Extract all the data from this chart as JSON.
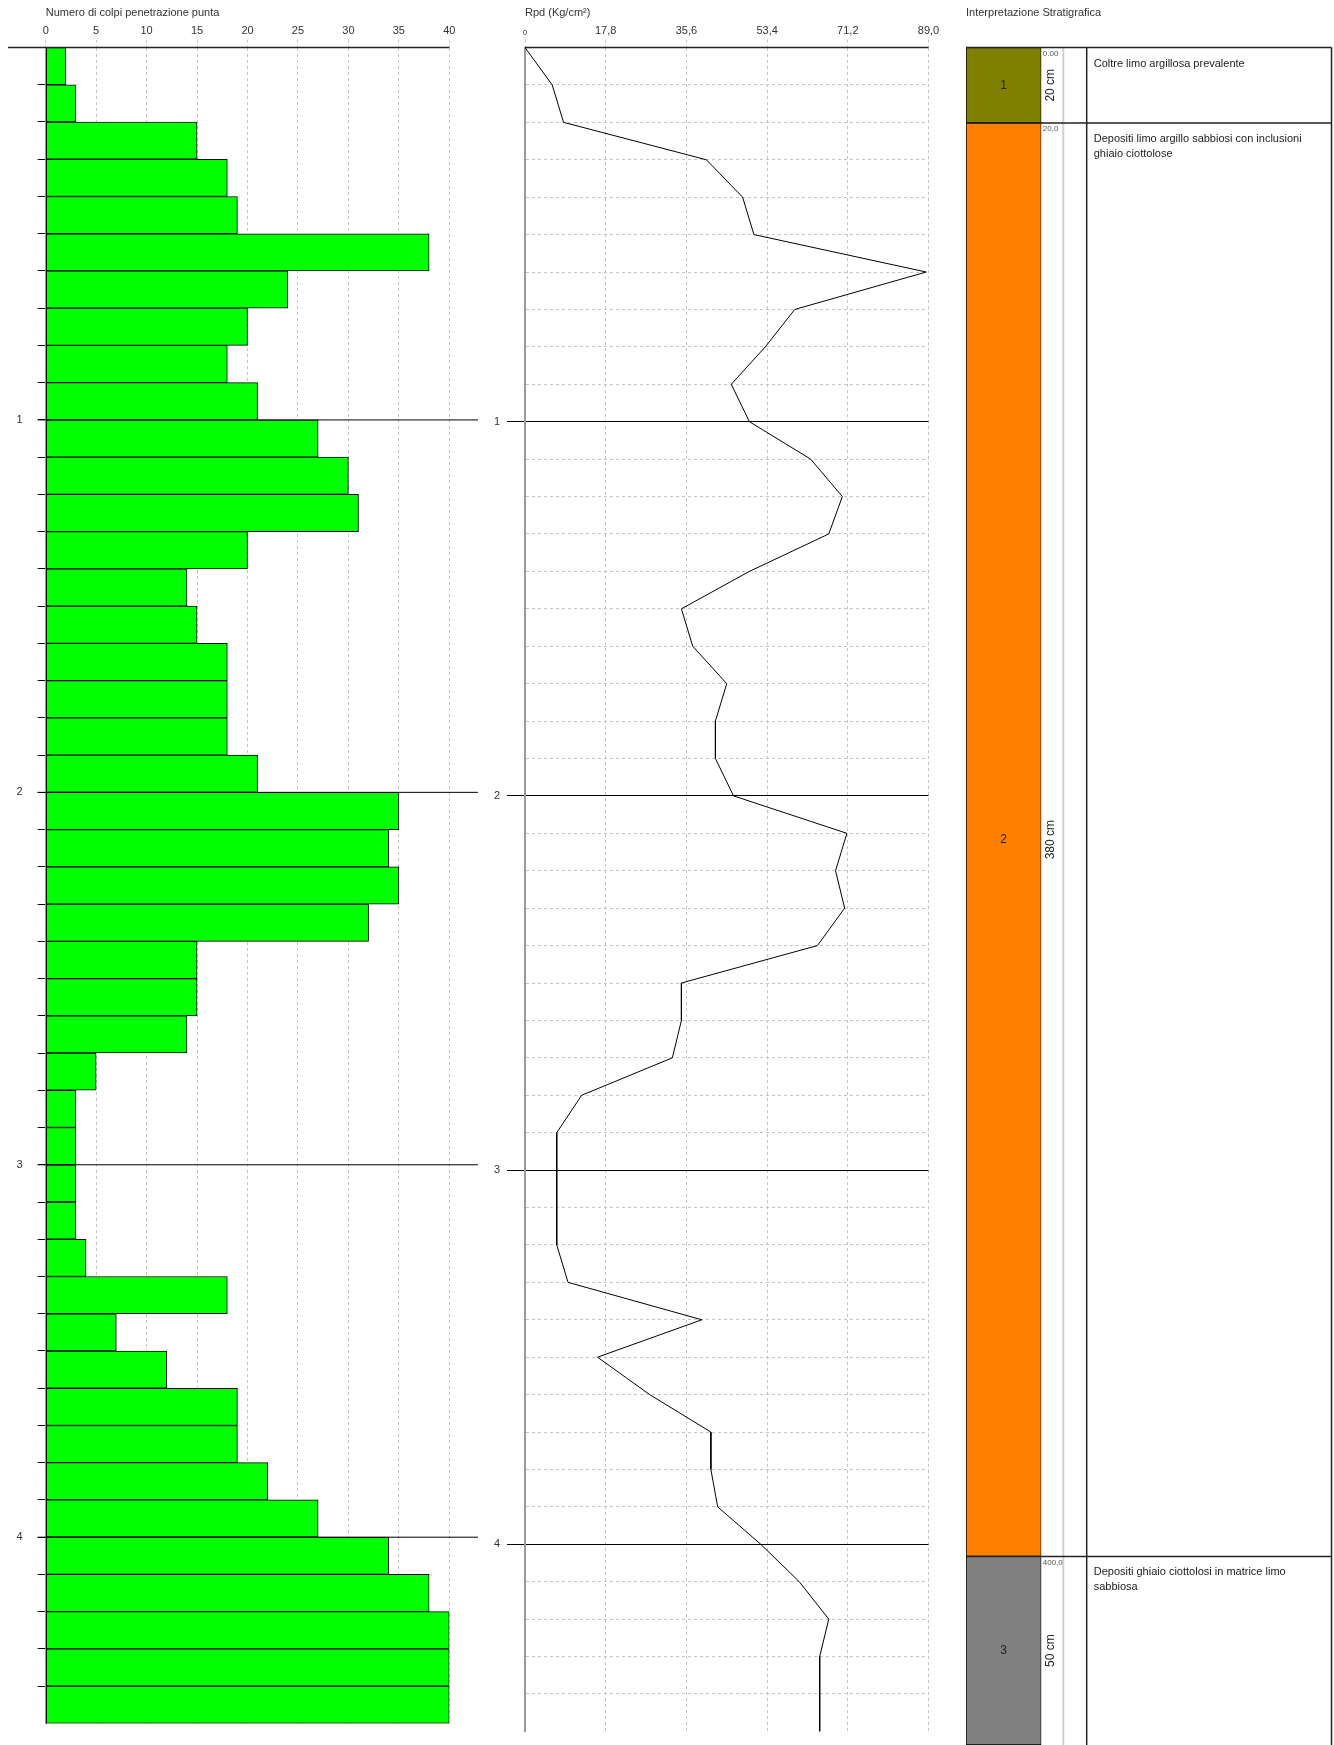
{
  "chart_data": [
    {
      "type": "histogram",
      "orientation": "horizontal",
      "title": "Numero di colpi penetrazione punta",
      "bins": [
        0,
        0.1,
        0.2,
        0.3,
        0.4,
        0.5,
        0.6,
        0.7,
        0.8,
        0.9,
        1,
        1.1,
        1.2,
        1.3,
        1.4,
        1.5,
        1.6,
        1.7,
        1.8,
        1.9,
        2,
        2.1,
        2.2,
        2.3,
        2.4,
        2.5,
        2.6,
        2.7,
        2.8,
        2.9,
        3,
        3.1,
        3.2,
        3.3,
        3.4,
        3.5,
        3.6,
        3.7,
        3.8,
        3.9,
        4,
        4.1,
        4.2,
        4.3,
        4.4,
        4.5
      ],
      "values": [
        2,
        3,
        15,
        18,
        19,
        38,
        24,
        20,
        18,
        21,
        27,
        30,
        31,
        20,
        14,
        15,
        18,
        18,
        18,
        21,
        35,
        34,
        35,
        32,
        15,
        15,
        14,
        5,
        3,
        3,
        3,
        3,
        4,
        18,
        7,
        12,
        19,
        19,
        22,
        27,
        34,
        38,
        40,
        40,
        40
      ],
      "color": "#00ff00",
      "xlim": [
        0,
        40
      ],
      "xticks": [
        0,
        5,
        10,
        15,
        20,
        25,
        30,
        35,
        40
      ],
      "ylim": [
        4.5,
        0
      ],
      "yticks": [
        {
          "value": 0.1,
          "label": null
        },
        {
          "value": 0.2,
          "label": null
        },
        {
          "value": 0.3,
          "label": null
        },
        {
          "value": 0.4,
          "label": null
        },
        {
          "value": 0.5,
          "label": null
        },
        {
          "value": 0.6,
          "label": null
        },
        {
          "value": 0.7,
          "label": null
        },
        {
          "value": 0.8,
          "label": null
        },
        {
          "value": 0.9,
          "label": null
        },
        1,
        {
          "value": 1.1,
          "label": null
        },
        {
          "value": 1.2,
          "label": null
        },
        {
          "value": 1.3,
          "label": null
        },
        {
          "value": 1.4,
          "label": null
        },
        {
          "value": 1.5,
          "label": null
        },
        {
          "value": 1.6,
          "label": null
        },
        {
          "value": 1.7,
          "label": null
        },
        {
          "value": 1.8,
          "label": null
        },
        {
          "value": 1.9,
          "label": null
        },
        2,
        {
          "value": 2.1,
          "label": null
        },
        {
          "value": 2.2,
          "label": null
        },
        {
          "value": 2.3,
          "label": null
        },
        {
          "value": 2.4,
          "label": null
        },
        {
          "value": 2.5,
          "label": null
        },
        {
          "value": 2.6,
          "label": null
        },
        {
          "value": 2.7,
          "label": null
        },
        {
          "value": 2.8,
          "label": null
        },
        {
          "value": 2.9,
          "label": null
        },
        3,
        {
          "value": 3.1,
          "label": null
        },
        {
          "value": 3.2,
          "label": null
        },
        {
          "value": 3.3,
          "label": null
        },
        {
          "value": 3.4,
          "label": null
        },
        {
          "value": 3.5,
          "label": null
        },
        {
          "value": 3.6,
          "label": null
        },
        {
          "value": 3.7,
          "label": null
        },
        {
          "value": 3.8,
          "label": null
        },
        {
          "value": 3.9,
          "label": null
        },
        4,
        {
          "value": 4.1,
          "label": null
        },
        {
          "value": 4.2,
          "label": null
        },
        {
          "value": 4.3,
          "label": null
        },
        {
          "value": 4.4,
          "label": null
        }
      ],
      "grid": "x",
      "ref_lines": [
        {
          "axis": "y",
          "value": 1
        },
        {
          "axis": "y",
          "value": 2
        },
        {
          "axis": "y",
          "value": 3
        },
        {
          "axis": "y",
          "value": 4
        }
      ]
    },
    {
      "type": "line",
      "title": "Rpd (Kg/cm²)",
      "x": [
        0,
        6,
        8.5,
        40,
        48,
        50.5,
        88.5,
        59.5,
        53,
        45.5,
        49.5,
        63,
        70,
        67,
        49.5,
        34.5,
        37,
        44.5,
        42,
        42,
        46,
        71,
        68.5,
        70.5,
        64.5,
        34.5,
        34.5,
        32.5,
        12.5,
        7,
        7,
        9.5,
        39,
        16,
        27.5,
        41,
        41,
        42.5,
        52,
        60.5,
        67,
        65,
        65
      ],
      "values": [
        0,
        0.1,
        0.2,
        0.3,
        0.4,
        0.5,
        0.6,
        0.7,
        0.8,
        0.9,
        1,
        1.1,
        1.2,
        1.3,
        1.4,
        1.5,
        1.6,
        1.7,
        1.8,
        1.9,
        2,
        2.1,
        2.2,
        2.3,
        2.4,
        2.5,
        2.6,
        2.7,
        2.8,
        2.9,
        3.2,
        3.3,
        3.4,
        3.5,
        3.6,
        3.7,
        3.8,
        3.9,
        4,
        4.1,
        4.2,
        4.3,
        4.5
      ],
      "color": "#000000",
      "xlim": [
        0,
        89
      ],
      "xticks": [
        0,
        {
          "value": 17.8,
          "label": "17,8"
        },
        {
          "value": 35.6,
          "label": "35,6"
        },
        {
          "value": 53.4,
          "label": "53,4"
        },
        {
          "value": 71.2,
          "label": "71,2"
        },
        {
          "value": 89,
          "label": "89,0"
        }
      ],
      "ylim": [
        4.5,
        0
      ],
      "yticks": [
        {
          "value": 0.1,
          "label": null
        },
        {
          "value": 0.2,
          "label": null
        },
        {
          "value": 0.3,
          "label": null
        },
        {
          "value": 0.4,
          "label": null
        },
        {
          "value": 0.5,
          "label": null
        },
        {
          "value": 0.6,
          "label": null
        },
        {
          "value": 0.7,
          "label": null
        },
        {
          "value": 0.8,
          "label": null
        },
        {
          "value": 0.9,
          "label": null
        },
        1,
        {
          "value": 1.1,
          "label": null
        },
        {
          "value": 1.2,
          "label": null
        },
        {
          "value": 1.3,
          "label": null
        },
        {
          "value": 1.4,
          "label": null
        },
        {
          "value": 1.5,
          "label": null
        },
        {
          "value": 1.6,
          "label": null
        },
        {
          "value": 1.7,
          "label": null
        },
        {
          "value": 1.8,
          "label": null
        },
        {
          "value": 1.9,
          "label": null
        },
        2,
        {
          "value": 2.1,
          "label": null
        },
        {
          "value": 2.2,
          "label": null
        },
        {
          "value": 2.3,
          "label": null
        },
        {
          "value": 2.4,
          "label": null
        },
        {
          "value": 2.5,
          "label": null
        },
        {
          "value": 2.6,
          "label": null
        },
        {
          "value": 2.7,
          "label": null
        },
        {
          "value": 2.8,
          "label": null
        },
        {
          "value": 2.9,
          "label": null
        },
        3,
        {
          "value": 3.1,
          "label": null
        },
        {
          "value": 3.2,
          "label": null
        },
        {
          "value": 3.3,
          "label": null
        },
        {
          "value": 3.4,
          "label": null
        },
        {
          "value": 3.5,
          "label": null
        },
        {
          "value": 3.6,
          "label": null
        },
        {
          "value": 3.7,
          "label": null
        },
        {
          "value": 3.8,
          "label": null
        },
        {
          "value": 3.9,
          "label": null
        },
        4,
        {
          "value": 4.1,
          "label": null
        },
        {
          "value": 4.2,
          "label": null
        },
        {
          "value": 4.3,
          "label": null
        },
        {
          "value": 4.4,
          "label": null
        }
      ],
      "grid": true
    },
    {
      "type": "bar",
      "stacked": true,
      "title": "Interpretazione Stratigrafica",
      "categories": [
        null
      ],
      "series": [
        {
          "name": "1",
          "color": "#808000",
          "values": [
            20
          ],
          "value_labels": [
            "20 cm"
          ]
        },
        {
          "name": "2",
          "color": "#ff8000",
          "values": [
            380
          ],
          "value_labels": [
            "380 cm"
          ]
        },
        {
          "name": "3",
          "color": "#808080",
          "values": [
            50
          ],
          "value_labels": [
            "50 cm"
          ]
        }
      ],
      "ylim": [
        450,
        0
      ],
      "yticks": [
        {
          "value": 0,
          "label": "0.00"
        },
        {
          "value": 20,
          "label": "20,0"
        },
        {
          "value": 400,
          "label": "400,0"
        }
      ],
      "tick_labels": "y",
      "grid": "y",
      "annotations": [
        "Coltre limo argillosa prevalente",
        "Depositi limo argillo sabbiosi con inclusioni ghiaio ciottolose",
        "Depositi ghiaio ciottolosi in matrice limo sabbiosa"
      ]
    }
  ]
}
